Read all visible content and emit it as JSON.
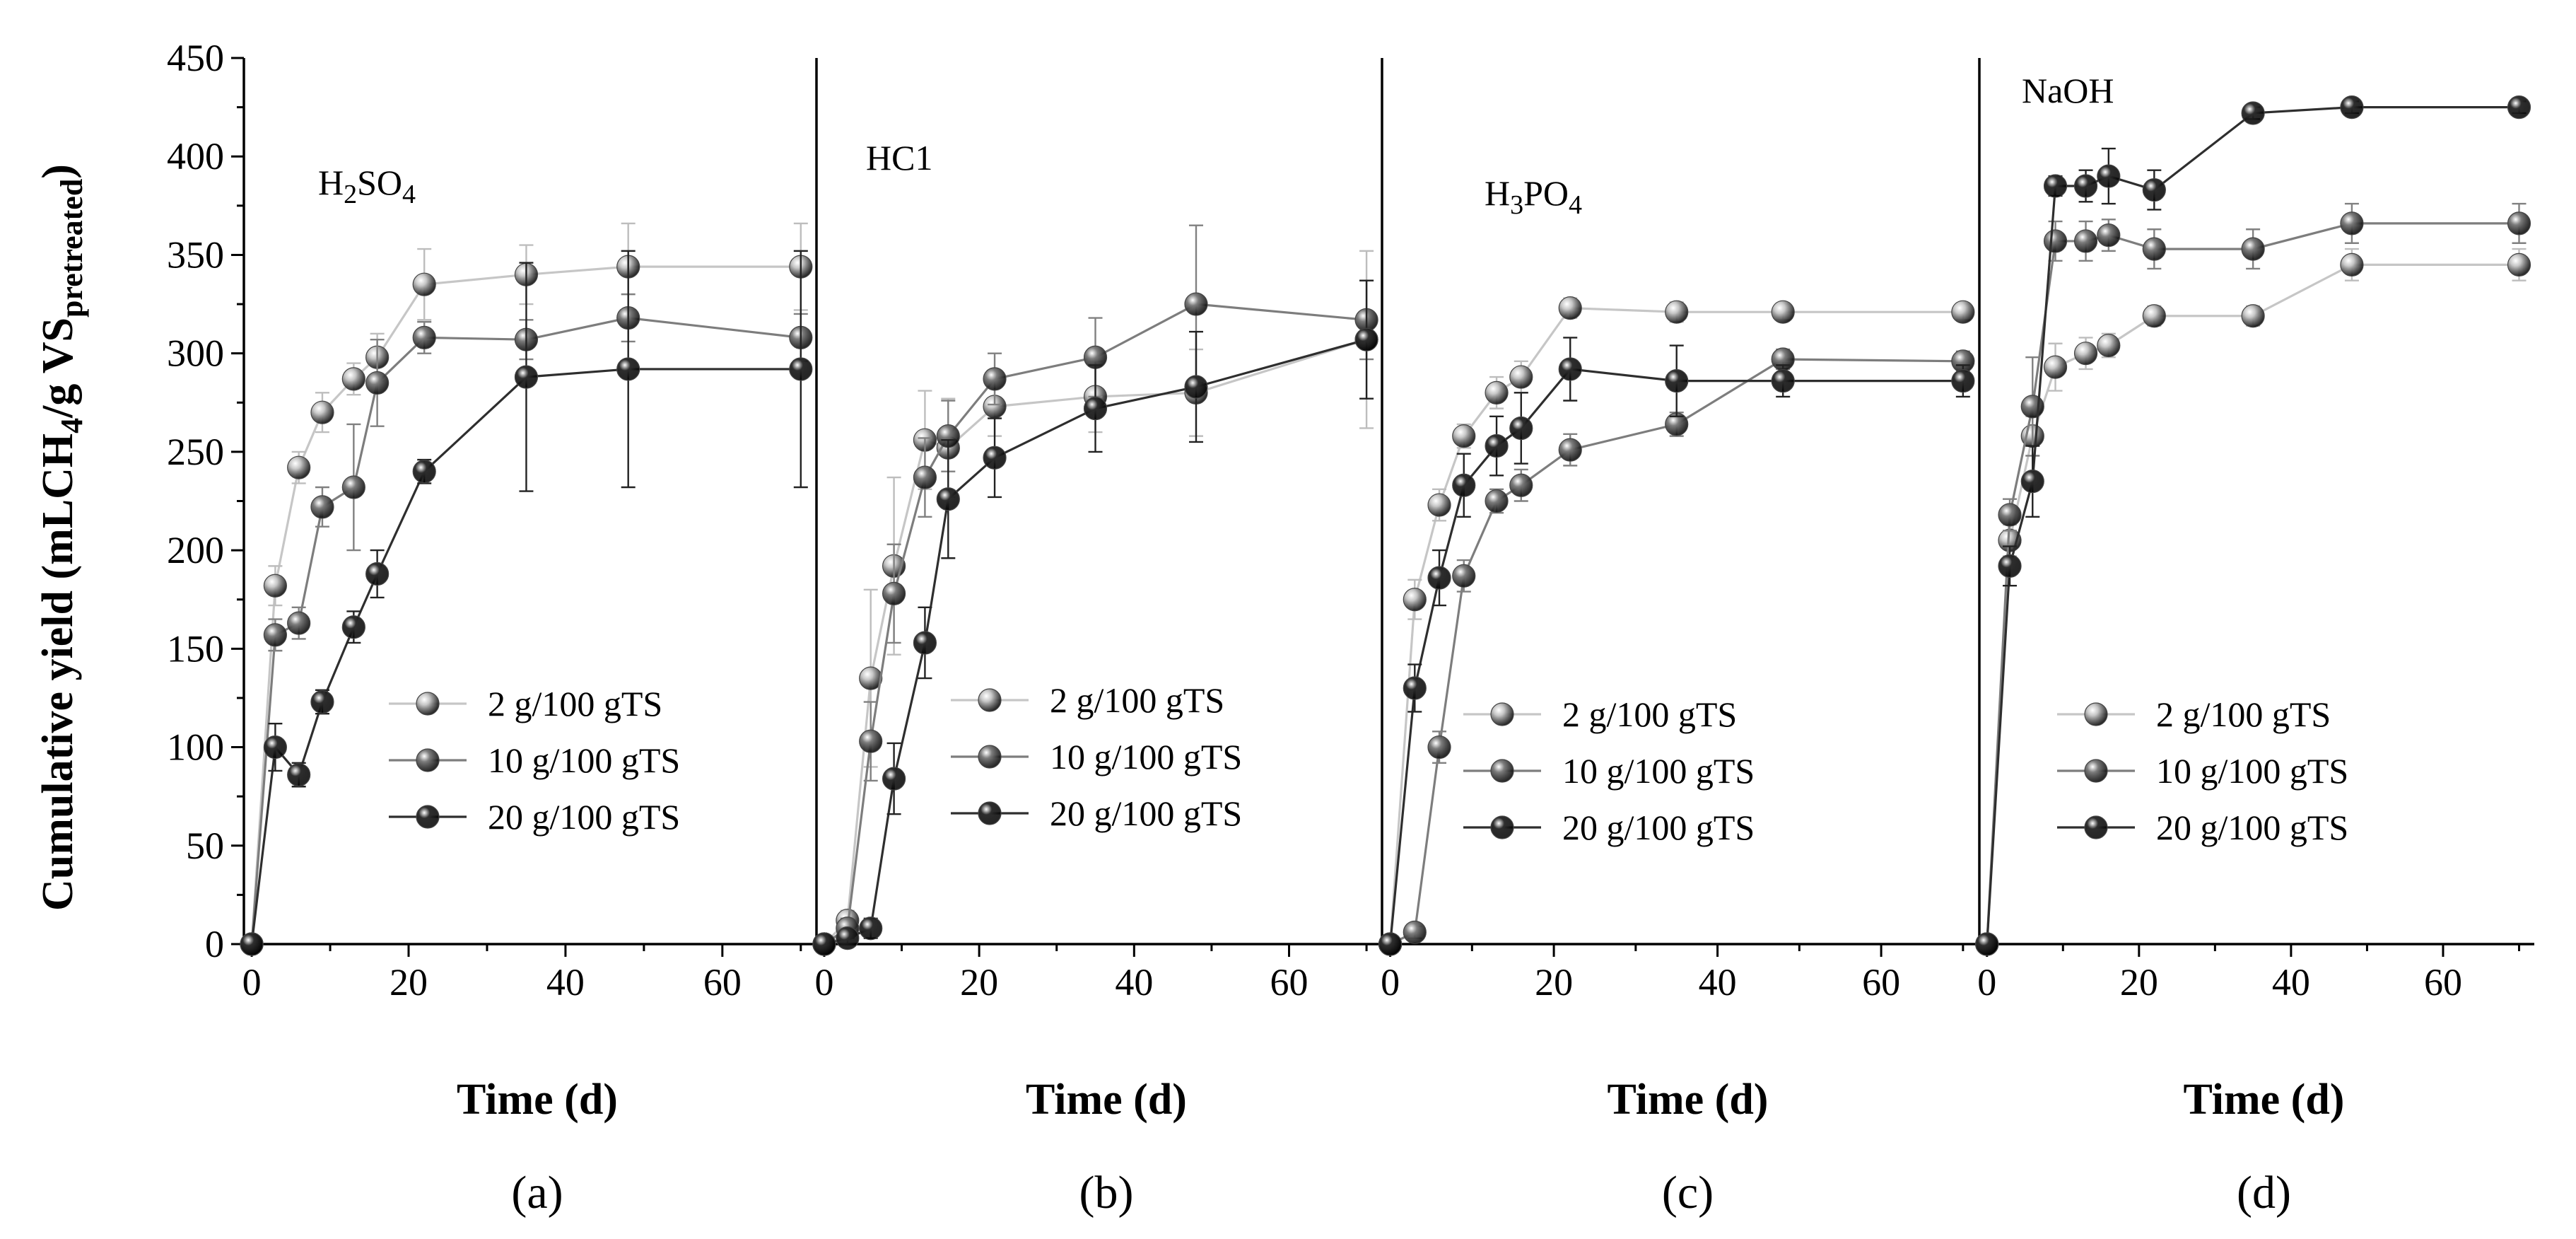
{
  "figure": {
    "ylabel_main": "Cumulative yield (mLCH",
    "ylabel_sub4": "4",
    "ylabel_mid": "/g VS",
    "ylabel_subscript": "pretreated",
    "ylabel_close": ")",
    "xlabel": "Time (d)"
  },
  "colors": {
    "series_light": "#c6c6c6",
    "series_mid": "#7d7d7d",
    "series_dark": "#2e2e2e",
    "err_light": "#bdbdbd",
    "err_mid": "#808080",
    "err_dark": "#222222"
  },
  "chart_data": [
    {
      "type": "line",
      "panel_label": "(a)",
      "title_parts": [
        "H",
        "2",
        "SO",
        "4"
      ],
      "xlabel": "Time (d)",
      "ylabel": "Cumulative yield (mLCH4/g VSpretreated)",
      "xlim": [
        -1,
        72
      ],
      "ylim": [
        0,
        450
      ],
      "xticks": [
        0,
        20,
        40,
        60
      ],
      "yticks": [
        0,
        50,
        100,
        150,
        200,
        250,
        300,
        350,
        400,
        450
      ],
      "legend": "center-right",
      "series": [
        {
          "name": "2 g/100 gTS",
          "x": [
            0,
            3,
            6,
            9,
            13,
            16,
            22,
            35,
            48,
            70
          ],
          "values": [
            0,
            182,
            242,
            270,
            287,
            298,
            335,
            340,
            344,
            344
          ],
          "err": [
            0,
            10,
            8,
            10,
            8,
            12,
            18,
            15,
            22,
            22
          ]
        },
        {
          "name": "10 g/100 gTS",
          "x": [
            0,
            3,
            6,
            9,
            13,
            16,
            22,
            35,
            48,
            70
          ],
          "values": [
            0,
            157,
            163,
            222,
            232,
            285,
            308,
            307,
            318,
            308
          ],
          "err": [
            0,
            8,
            8,
            10,
            32,
            22,
            8,
            10,
            12,
            12
          ]
        },
        {
          "name": "20 g/100 gTS",
          "x": [
            0,
            3,
            6,
            9,
            13,
            16,
            22,
            35,
            48,
            70
          ],
          "values": [
            0,
            100,
            86,
            123,
            161,
            188,
            240,
            288,
            292,
            292
          ],
          "err": [
            0,
            12,
            6,
            6,
            8,
            12,
            6,
            58,
            60,
            60
          ]
        }
      ]
    },
    {
      "type": "line",
      "panel_label": "(b)",
      "title_parts": [
        "HC1"
      ],
      "xlabel": "Time (d)",
      "xlim": [
        -1,
        72
      ],
      "ylim": [
        0,
        450
      ],
      "xticks": [
        0,
        20,
        40,
        60
      ],
      "legend": "center-right",
      "series": [
        {
          "name": "2 g/100 gTS",
          "x": [
            0,
            3,
            6,
            9,
            13,
            16,
            22,
            35,
            48,
            70
          ],
          "values": [
            0,
            12,
            135,
            192,
            256,
            252,
            273,
            278,
            280,
            307
          ],
          "err": [
            0,
            5,
            45,
            45,
            25,
            25,
            15,
            18,
            22,
            45
          ]
        },
        {
          "name": "10 g/100 gTS",
          "x": [
            0,
            3,
            6,
            9,
            13,
            16,
            22,
            35,
            48,
            70
          ],
          "values": [
            0,
            8,
            103,
            178,
            237,
            258,
            287,
            298,
            325,
            317
          ],
          "err": [
            0,
            5,
            20,
            25,
            20,
            18,
            13,
            20,
            40,
            20
          ]
        },
        {
          "name": "20 g/100 gTS",
          "x": [
            0,
            3,
            6,
            9,
            13,
            16,
            22,
            35,
            48,
            70
          ],
          "values": [
            0,
            3,
            8,
            84,
            153,
            226,
            247,
            272,
            283,
            307
          ],
          "err": [
            0,
            3,
            5,
            18,
            18,
            30,
            20,
            22,
            28,
            30
          ]
        }
      ]
    },
    {
      "type": "line",
      "panel_label": "(c)",
      "title_parts": [
        "H",
        "3",
        "PO",
        "4"
      ],
      "xlabel": "Time (d)",
      "xlim": [
        -1,
        72
      ],
      "ylim": [
        0,
        450
      ],
      "xticks": [
        0,
        20,
        40,
        60
      ],
      "legend": "center-right",
      "series": [
        {
          "name": "2 g/100 gTS",
          "x": [
            0,
            3,
            6,
            9,
            13,
            16,
            22,
            35,
            48,
            70
          ],
          "values": [
            0,
            175,
            223,
            258,
            280,
            288,
            323,
            321,
            321,
            321
          ],
          "err": [
            0,
            10,
            8,
            6,
            8,
            8,
            5,
            5,
            4,
            4
          ]
        },
        {
          "name": "10 g/100 gTS",
          "x": [
            0,
            3,
            6,
            9,
            13,
            16,
            22,
            35,
            48,
            70
          ],
          "values": [
            0,
            6,
            100,
            187,
            225,
            233,
            251,
            264,
            297,
            296
          ],
          "err": [
            0,
            3,
            8,
            8,
            6,
            8,
            8,
            6,
            5,
            5
          ]
        },
        {
          "name": "20 g/100 gTS",
          "x": [
            0,
            3,
            6,
            9,
            13,
            16,
            22,
            35,
            48,
            70
          ],
          "values": [
            0,
            130,
            186,
            233,
            253,
            262,
            292,
            286,
            286,
            286
          ],
          "err": [
            0,
            12,
            14,
            16,
            15,
            18,
            16,
            18,
            8,
            8
          ]
        }
      ]
    },
    {
      "type": "line",
      "panel_label": "(d)",
      "title_parts": [
        "NaOH"
      ],
      "xlabel": "Time (d)",
      "xlim": [
        -1,
        72
      ],
      "ylim": [
        0,
        450
      ],
      "xticks": [
        0,
        20,
        40,
        60
      ],
      "legend": "center-right",
      "series": [
        {
          "name": "2 g/100 gTS",
          "x": [
            0,
            3,
            6,
            9,
            13,
            16,
            22,
            35,
            48,
            70
          ],
          "values": [
            0,
            205,
            258,
            293,
            300,
            304,
            319,
            319,
            345,
            345
          ],
          "err": [
            0,
            8,
            10,
            12,
            8,
            6,
            5,
            5,
            8,
            8
          ]
        },
        {
          "name": "10 g/100 gTS",
          "x": [
            0,
            3,
            6,
            9,
            13,
            16,
            22,
            35,
            48,
            70
          ],
          "values": [
            0,
            218,
            273,
            357,
            357,
            360,
            353,
            353,
            366,
            366
          ],
          "err": [
            0,
            8,
            25,
            10,
            10,
            8,
            10,
            10,
            10,
            10
          ]
        },
        {
          "name": "20 g/100 gTS",
          "x": [
            0,
            3,
            6,
            9,
            13,
            16,
            22,
            35,
            48,
            70
          ],
          "values": [
            0,
            192,
            235,
            385,
            385,
            390,
            383,
            422,
            425,
            425
          ],
          "err": [
            0,
            10,
            18,
            5,
            8,
            14,
            10,
            3,
            3,
            3
          ]
        }
      ]
    }
  ]
}
